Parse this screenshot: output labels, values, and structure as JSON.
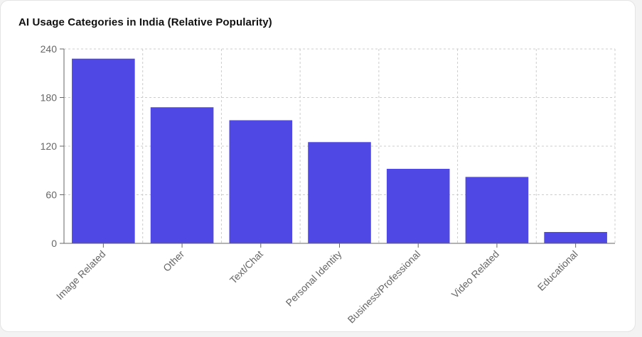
{
  "chart_data": {
    "type": "bar",
    "title": "AI Usage Categories in India (Relative Popularity)",
    "categories": [
      "Image Related",
      "Other",
      "Text/Chat",
      "Personal Identity",
      "Business/Professional",
      "Video Related",
      "Educational"
    ],
    "values": [
      228,
      168,
      152,
      125,
      92,
      82,
      14
    ],
    "ylim": [
      0,
      240
    ],
    "yticks": [
      0,
      60,
      120,
      180,
      240
    ],
    "grid": true,
    "bar_color": "#5048e5",
    "grid_color": "#cccccc",
    "axis_color": "#666666"
  }
}
